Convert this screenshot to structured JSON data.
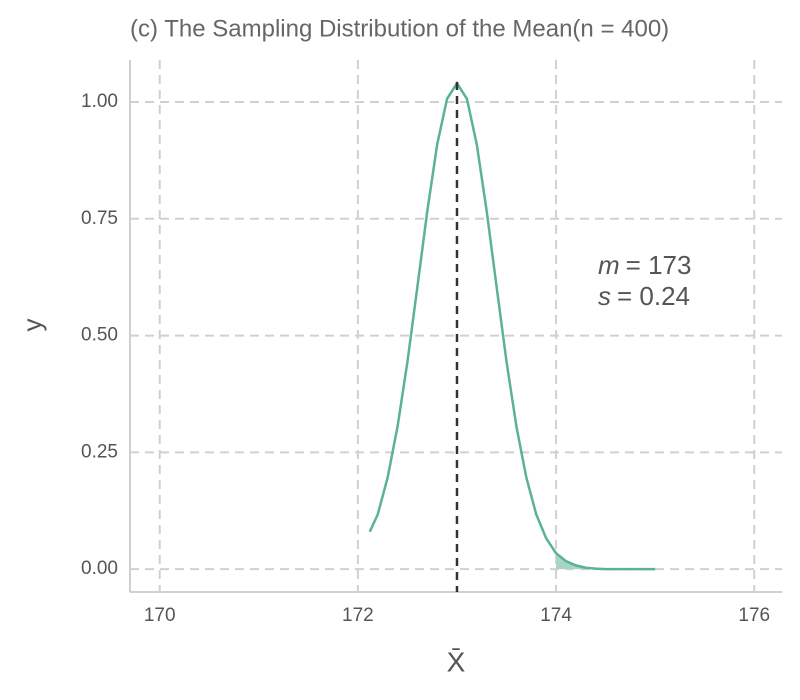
{
  "chart_data": {
    "type": "line",
    "title": "(c) The Sampling Distribution of the Mean(n = 400)",
    "x_label": "X̄",
    "y_label": "y",
    "x": [
      172.12,
      172.2,
      172.3,
      172.4,
      172.5,
      172.6,
      172.7,
      172.8,
      172.9,
      173.0,
      173.1,
      173.2,
      173.3,
      173.4,
      173.5,
      173.6,
      173.7,
      173.8,
      173.9,
      174.0,
      174.1,
      174.2,
      174.3,
      174.4,
      174.5,
      174.6,
      174.7,
      174.8,
      174.9,
      175.0
    ],
    "values": [
      0.08,
      0.117,
      0.196,
      0.305,
      0.444,
      0.604,
      0.766,
      0.909,
      1.007,
      1.04,
      1.007,
      0.909,
      0.766,
      0.604,
      0.444,
      0.305,
      0.196,
      0.117,
      0.066,
      0.034,
      0.017,
      0.008,
      0.003,
      0.001,
      0,
      0,
      0,
      0,
      0,
      0
    ],
    "color": "#5bb394",
    "shade_color": "#a6d6c3",
    "shade_from": 174,
    "vline": 173,
    "annotation": [
      {
        "var": "m",
        "text": "= 173"
      },
      {
        "var": "s",
        "text": "= 0.24"
      }
    ],
    "xlim": [
      169.7,
      176.28
    ],
    "xticks": [
      170,
      172,
      174,
      176
    ],
    "ylim": [
      -0.049,
      1.09
    ],
    "yticks": [
      {
        "value": 0,
        "label": "0.00"
      },
      {
        "value": 0.25,
        "label": "0.25"
      },
      {
        "value": 0.5,
        "label": "0.50"
      },
      {
        "value": 0.75,
        "label": "0.75"
      },
      {
        "value": 1,
        "label": "1.00"
      }
    ],
    "grid": true
  }
}
